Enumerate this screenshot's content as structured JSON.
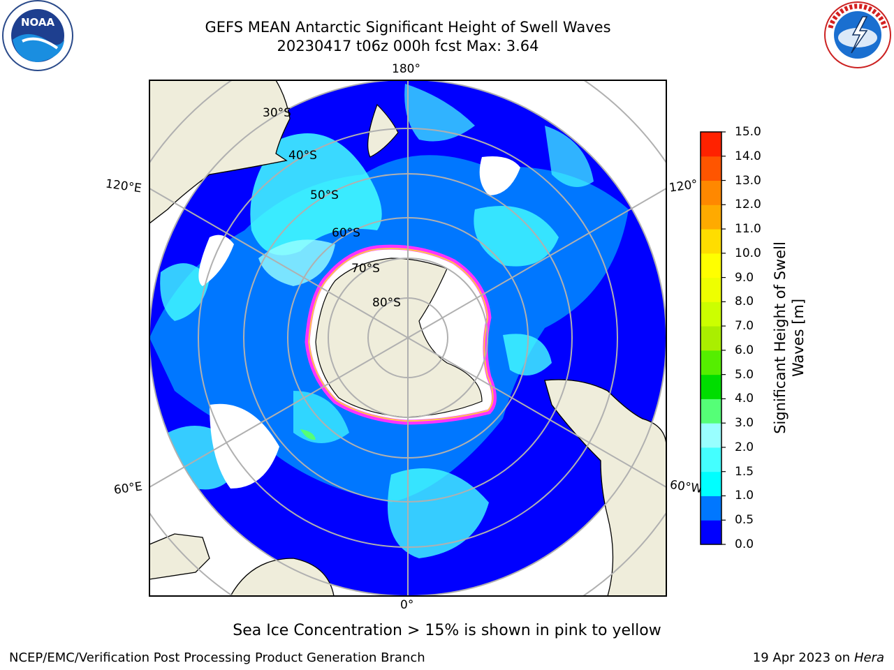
{
  "header": {
    "title_line1": "GEFS MEAN Antarctic Significant Height of Swell Waves",
    "title_line2": "20230417 t06z 000h fcst   Max: 3.64"
  },
  "logos": {
    "left": {
      "icon": "noaa-logo",
      "text": "NOAA"
    },
    "right": {
      "icon": "national-weather-service-logo"
    }
  },
  "map": {
    "projection": "south-polar-stereographic",
    "longitude_labels": [
      "180°",
      "120°E",
      "120°",
      "60°E",
      "60°W",
      "0°"
    ],
    "latitude_labels": [
      "30°S",
      "40°S",
      "50°S",
      "60°S",
      "70°S",
      "80°S"
    ],
    "colors": {
      "land": "#efeddb",
      "ice_edge_outer": "#ff33ff",
      "ice_edge_inner": "#ffcc44"
    }
  },
  "colorbar": {
    "label_line1": "Significant Height of Swell",
    "label_line2": "Waves [m]",
    "ticks": [
      "0.0",
      "0.5",
      "1.0",
      "1.5",
      "2.0",
      "3.0",
      "4.0",
      "5.0",
      "6.0",
      "7.0",
      "8.0",
      "9.0",
      "10.0",
      "11.0",
      "12.0",
      "13.0",
      "14.0",
      "15.0"
    ],
    "colors": [
      "#0000ff",
      "#0077ff",
      "#00ffff",
      "#44ffff",
      "#99ffff",
      "#55ff77",
      "#00dd00",
      "#55ee00",
      "#aaee00",
      "#ccff00",
      "#eeff00",
      "#ffff00",
      "#ffdd00",
      "#ffaa00",
      "#ff8800",
      "#ff5500",
      "#ff2200"
    ]
  },
  "footer": {
    "note": "Sea Ice Concentration > 15% is shown in pink to yellow",
    "credit": "NCEP/EMC/Verification Post Processing Product Generation Branch",
    "date": "19 Apr 2023 on",
    "system": "Hera"
  }
}
